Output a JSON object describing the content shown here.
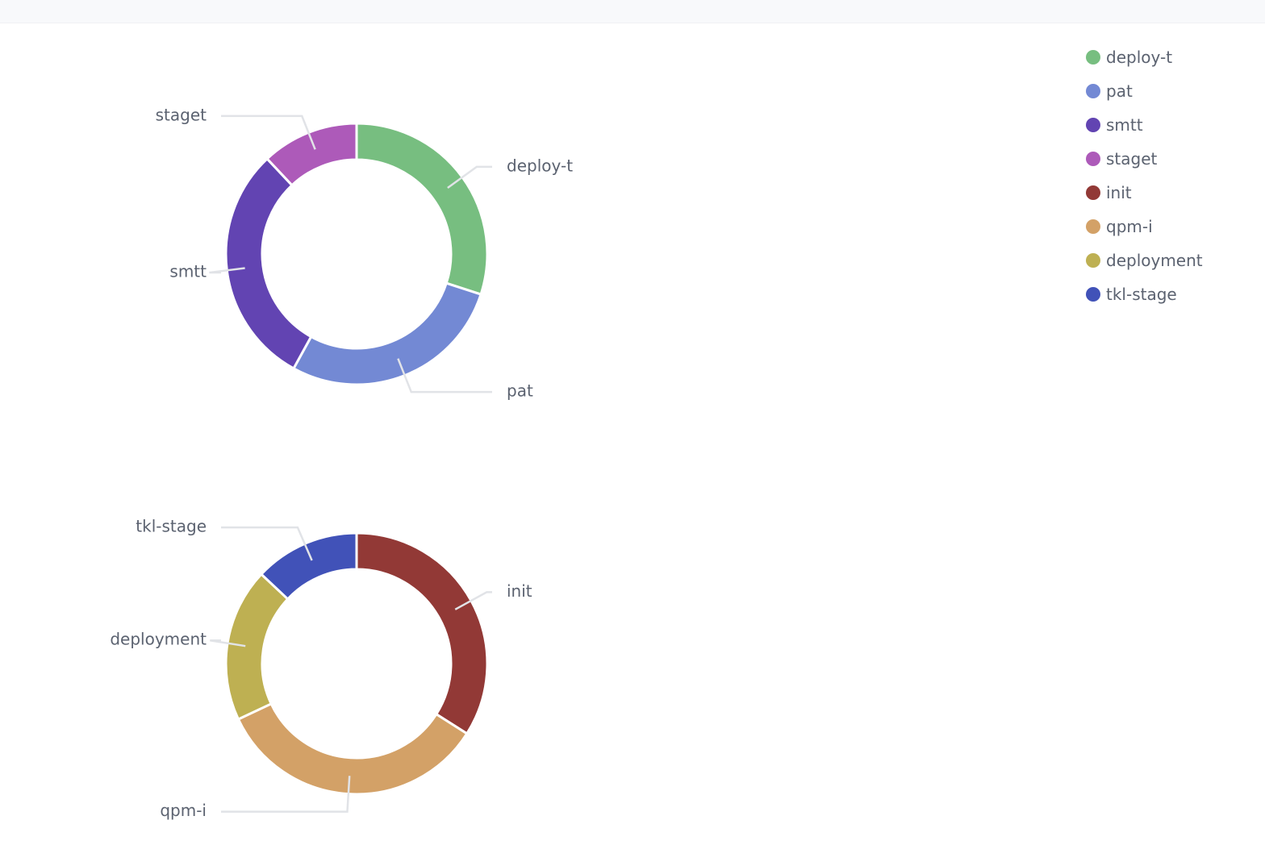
{
  "chart_data": [
    {
      "type": "pie",
      "donut": true,
      "categories": [
        "deploy-t",
        "pat",
        "smtt",
        "staget"
      ],
      "values": [
        30,
        28,
        30,
        12
      ],
      "colors": [
        "#77be80",
        "#7389d4",
        "#6244b2",
        "#ad5ab9"
      ]
    },
    {
      "type": "pie",
      "donut": true,
      "categories": [
        "init",
        "qpm-i",
        "deployment",
        "tkl-stage"
      ],
      "values": [
        34,
        34,
        19,
        13
      ],
      "colors": [
        "#923936",
        "#d3a167",
        "#beb052",
        "#4152b8"
      ]
    }
  ],
  "legend": {
    "placement": "top-right",
    "items": [
      {
        "label": "deploy-t",
        "color": "#77be80"
      },
      {
        "label": "pat",
        "color": "#7389d4"
      },
      {
        "label": "smtt",
        "color": "#6244b2"
      },
      {
        "label": "staget",
        "color": "#ad5ab9"
      },
      {
        "label": "init",
        "color": "#923936"
      },
      {
        "label": "qpm-i",
        "color": "#d3a167"
      },
      {
        "label": "deployment",
        "color": "#beb052"
      },
      {
        "label": "tkl-stage",
        "color": "#4152b8"
      }
    ]
  }
}
